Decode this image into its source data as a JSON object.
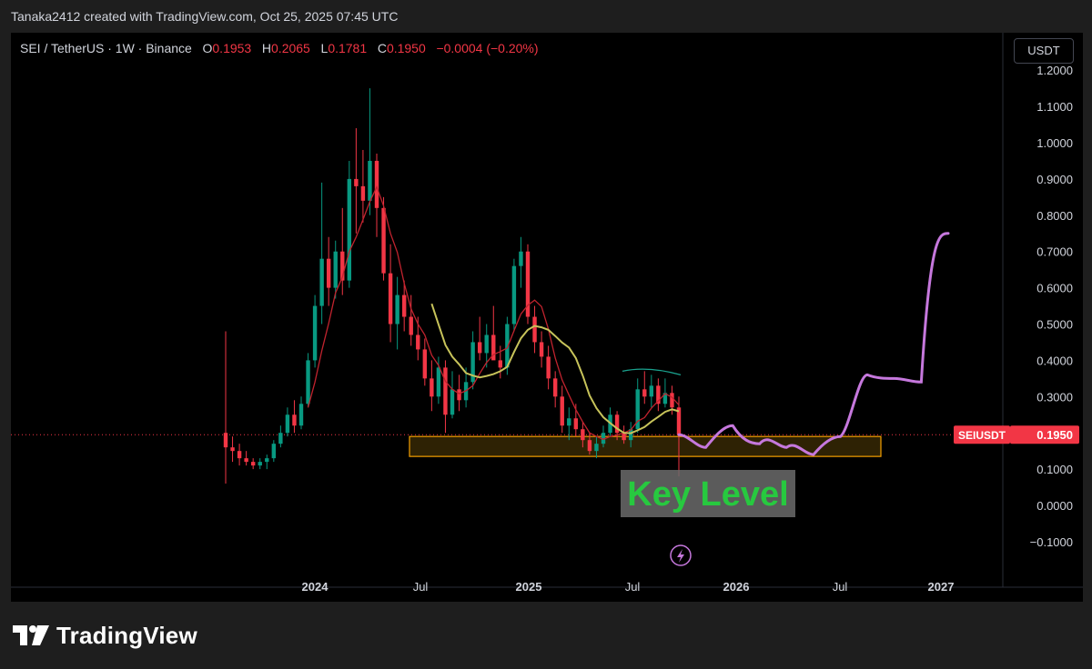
{
  "header": {
    "credit": "Tanaka2412 created with TradingView.com, Oct 25, 2025 07:45 UTC"
  },
  "symbol": {
    "pair": "SEI / TetherUS · 1W · Binance",
    "o_label": "O",
    "o": "0.1953",
    "h_label": "H",
    "h": "0.2065",
    "l_label": "L",
    "l": "0.1781",
    "c_label": "C",
    "c": "0.1950",
    "change": "−0.0004 (−0.20%)"
  },
  "currency_button": "USDT",
  "price_tag": {
    "label": "SEIUSDT",
    "value": "0.1950"
  },
  "annotation": {
    "text": "Key Level"
  },
  "footer": {
    "brand": "TradingView"
  },
  "colors": {
    "up": "#089981",
    "down": "#f23645",
    "ma_red": "#c0232e",
    "ma_yellow": "#c7c35a",
    "forecast": "#c678dd",
    "zone_border": "#f59f00",
    "zone_fill": "#3a2a05",
    "trend": "#1aa38f",
    "label_bg": "#6b6b6b",
    "label_text": "#27c93f"
  },
  "chart_data": {
    "type": "candlestick",
    "title": "SEI / TetherUS · 1W · Binance",
    "y_axis": {
      "ticks": [
        "1.2000",
        "1.1000",
        "1.0000",
        "0.9000",
        "0.8000",
        "0.7000",
        "0.6000",
        "0.5000",
        "0.4000",
        "0.3000",
        "0.1000",
        "0.0000",
        "−0.1000"
      ],
      "ylim": [
        -0.15,
        1.22
      ]
    },
    "x_axis": {
      "ticks": [
        "2024",
        "Jul",
        "2025",
        "Jul",
        "2026",
        "Jul",
        "2027"
      ]
    },
    "current_price": 0.195,
    "key_level_zone": [
      0.135,
      0.19
    ],
    "candles_approx": [
      [
        0.2,
        0.48,
        0.06,
        0.16
      ],
      [
        0.16,
        0.19,
        0.12,
        0.15
      ],
      [
        0.15,
        0.17,
        0.11,
        0.13
      ],
      [
        0.13,
        0.15,
        0.11,
        0.12
      ],
      [
        0.12,
        0.13,
        0.1,
        0.11
      ],
      [
        0.11,
        0.13,
        0.1,
        0.12
      ],
      [
        0.12,
        0.14,
        0.1,
        0.13
      ],
      [
        0.13,
        0.18,
        0.12,
        0.17
      ],
      [
        0.17,
        0.22,
        0.16,
        0.2
      ],
      [
        0.2,
        0.27,
        0.19,
        0.25
      ],
      [
        0.25,
        0.29,
        0.2,
        0.22
      ],
      [
        0.22,
        0.3,
        0.21,
        0.28
      ],
      [
        0.28,
        0.42,
        0.27,
        0.4
      ],
      [
        0.4,
        0.58,
        0.38,
        0.55
      ],
      [
        0.55,
        0.89,
        0.5,
        0.68
      ],
      [
        0.68,
        0.74,
        0.55,
        0.6
      ],
      [
        0.6,
        0.73,
        0.57,
        0.7
      ],
      [
        0.7,
        0.82,
        0.58,
        0.62
      ],
      [
        0.62,
        0.95,
        0.6,
        0.9
      ],
      [
        0.9,
        1.04,
        0.75,
        0.88
      ],
      [
        0.88,
        0.98,
        0.78,
        0.84
      ],
      [
        0.84,
        1.15,
        0.8,
        0.95
      ],
      [
        0.95,
        0.97,
        0.74,
        0.82
      ],
      [
        0.82,
        0.85,
        0.62,
        0.64
      ],
      [
        0.64,
        0.72,
        0.45,
        0.5
      ],
      [
        0.5,
        0.63,
        0.43,
        0.58
      ],
      [
        0.58,
        0.62,
        0.48,
        0.52
      ],
      [
        0.52,
        0.58,
        0.44,
        0.47
      ],
      [
        0.47,
        0.52,
        0.4,
        0.43
      ],
      [
        0.43,
        0.46,
        0.33,
        0.35
      ],
      [
        0.35,
        0.4,
        0.26,
        0.3
      ],
      [
        0.3,
        0.41,
        0.28,
        0.38
      ],
      [
        0.38,
        0.4,
        0.2,
        0.25
      ],
      [
        0.25,
        0.37,
        0.24,
        0.32
      ],
      [
        0.32,
        0.36,
        0.26,
        0.29
      ],
      [
        0.29,
        0.38,
        0.27,
        0.34
      ],
      [
        0.34,
        0.48,
        0.32,
        0.45
      ],
      [
        0.45,
        0.52,
        0.4,
        0.42
      ],
      [
        0.42,
        0.5,
        0.38,
        0.47
      ],
      [
        0.47,
        0.55,
        0.44,
        0.4
      ],
      [
        0.4,
        0.44,
        0.35,
        0.38
      ],
      [
        0.38,
        0.52,
        0.36,
        0.5
      ],
      [
        0.5,
        0.68,
        0.48,
        0.66
      ],
      [
        0.66,
        0.74,
        0.6,
        0.7
      ],
      [
        0.7,
        0.72,
        0.5,
        0.52
      ],
      [
        0.52,
        0.55,
        0.42,
        0.45
      ],
      [
        0.45,
        0.48,
        0.38,
        0.41
      ],
      [
        0.41,
        0.44,
        0.32,
        0.35
      ],
      [
        0.35,
        0.37,
        0.27,
        0.3
      ],
      [
        0.3,
        0.33,
        0.2,
        0.22
      ],
      [
        0.22,
        0.27,
        0.18,
        0.24
      ],
      [
        0.24,
        0.28,
        0.19,
        0.21
      ],
      [
        0.21,
        0.23,
        0.16,
        0.18
      ],
      [
        0.18,
        0.2,
        0.14,
        0.15
      ],
      [
        0.15,
        0.19,
        0.13,
        0.17
      ],
      [
        0.17,
        0.22,
        0.16,
        0.2
      ],
      [
        0.2,
        0.27,
        0.19,
        0.25
      ],
      [
        0.25,
        0.26,
        0.18,
        0.2
      ],
      [
        0.2,
        0.22,
        0.17,
        0.18
      ],
      [
        0.18,
        0.23,
        0.16,
        0.21
      ],
      [
        0.21,
        0.35,
        0.2,
        0.32
      ],
      [
        0.32,
        0.37,
        0.28,
        0.3
      ],
      [
        0.3,
        0.36,
        0.27,
        0.33
      ],
      [
        0.33,
        0.35,
        0.26,
        0.28
      ],
      [
        0.28,
        0.35,
        0.27,
        0.31
      ],
      [
        0.31,
        0.33,
        0.25,
        0.27
      ],
      [
        0.27,
        0.3,
        0.08,
        0.195
      ]
    ],
    "forecast_path_approx": [
      [
        0.195,
        0.16
      ],
      [
        0.19,
        0.22
      ],
      [
        0.18,
        0.17
      ],
      [
        0.2,
        0.16
      ],
      [
        0.18,
        0.14
      ],
      [
        0.17,
        0.19
      ],
      [
        0.21,
        0.36
      ],
      [
        0.35,
        0.35
      ],
      [
        0.35,
        0.34
      ],
      [
        0.75,
        0.75
      ]
    ]
  }
}
